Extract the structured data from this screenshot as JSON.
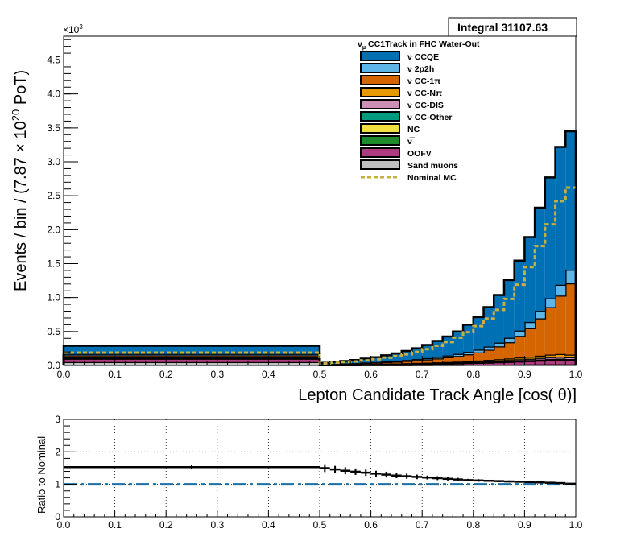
{
  "chart_data": [
    {
      "type": "stacked-histogram",
      "integral_label": "Integral 31107.63",
      "ylabel": "Events / bin / (7.87  × 10",
      "ylabel_exp": "20",
      "ylabel_tail": " PoT)",
      "xlabel": "Lepton Candidate Track Angle [cos(   θ)]",
      "y_multiplier": "×10",
      "y_multiplier_exp": "3",
      "xlim": [
        0.0,
        1.0
      ],
      "ylim": [
        0.0,
        4.85
      ],
      "yunit_scale": 1000,
      "x_ticks": [
        "0.0",
        "0.1",
        "0.2",
        "0.3",
        "0.4",
        "0.5",
        "0.6",
        "0.7",
        "0.8",
        "0.9",
        "1.0"
      ],
      "y_ticks": [
        "0.0",
        "0.5",
        "1.0",
        "1.5",
        "2.0",
        "2.5",
        "3.0",
        "3.5",
        "4.0",
        "4.5"
      ],
      "legend_header": "ν",
      "legend_header_sub": "μ",
      "legend_header_tail": " CC1Track in FHC Water-Out",
      "legend": [
        {
          "label": "ν CCQE",
          "color": "#0070b5"
        },
        {
          "label": "ν 2p2h",
          "color": "#5db5e8"
        },
        {
          "label": "ν CC-1π",
          "color": "#d46500"
        },
        {
          "label": "ν CC-Nπ",
          "color": "#e69a00"
        },
        {
          "label": "ν CC-DIS",
          "color": "#cc8fb5"
        },
        {
          "label": "ν CC-Other",
          "color": "#009a80"
        },
        {
          "label": "NC",
          "color": "#f0e040"
        },
        {
          "label": "ν̅",
          "color": "#1f8a2a"
        },
        {
          "label": "OOFV",
          "color": "#b03a80"
        },
        {
          "label": "Sand muons",
          "color": "#c0c0c0"
        },
        {
          "label": "Nominal MC",
          "color": "#c8b040",
          "style": "dashed"
        }
      ],
      "bin_edges": [
        0.0,
        0.5,
        0.52,
        0.54,
        0.56,
        0.58,
        0.6,
        0.62,
        0.64,
        0.66,
        0.68,
        0.7,
        0.72,
        0.74,
        0.76,
        0.78,
        0.8,
        0.82,
        0.84,
        0.86,
        0.88,
        0.9,
        0.92,
        0.94,
        0.96,
        0.98,
        1.0
      ],
      "series": [
        {
          "name": "Sand muons",
          "color": "#c0c0c0",
          "values": [
            0.05,
            0.003,
            0.003,
            0.003,
            0.003,
            0.004,
            0.004,
            0.005,
            0.005,
            0.005,
            0.006,
            0.006,
            0.007,
            0.007,
            0.008,
            0.009,
            0.01,
            0.011,
            0.012,
            0.013,
            0.014,
            0.015,
            0.016,
            0.017,
            0.017,
            0.016
          ]
        },
        {
          "name": "OOFV",
          "color": "#b03a80",
          "values": [
            0.05,
            0.004,
            0.005,
            0.006,
            0.007,
            0.008,
            0.009,
            0.01,
            0.011,
            0.013,
            0.014,
            0.016,
            0.018,
            0.02,
            0.022,
            0.025,
            0.028,
            0.031,
            0.035,
            0.039,
            0.044,
            0.049,
            0.055,
            0.061,
            0.065,
            0.06
          ]
        },
        {
          "name": "ν̅",
          "color": "#1f8a2a",
          "values": [
            0.008,
            0.001,
            0.001,
            0.001,
            0.001,
            0.002,
            0.002,
            0.002,
            0.002,
            0.003,
            0.003,
            0.003,
            0.004,
            0.004,
            0.004,
            0.005,
            0.005,
            0.006,
            0.006,
            0.007,
            0.008,
            0.008,
            0.009,
            0.01,
            0.01,
            0.01
          ]
        },
        {
          "name": "NC",
          "color": "#f0e040",
          "values": [
            0.005,
            0.001,
            0.001,
            0.001,
            0.001,
            0.001,
            0.001,
            0.002,
            0.002,
            0.002,
            0.002,
            0.002,
            0.002,
            0.003,
            0.003,
            0.003,
            0.003,
            0.004,
            0.004,
            0.004,
            0.005,
            0.005,
            0.005,
            0.006,
            0.006,
            0.006
          ]
        },
        {
          "name": "ν CC-Other",
          "color": "#009a80",
          "values": [
            0.002,
            0.0,
            0.0,
            0.0,
            0.0,
            0.001,
            0.001,
            0.001,
            0.001,
            0.001,
            0.001,
            0.001,
            0.001,
            0.001,
            0.001,
            0.002,
            0.002,
            0.002,
            0.002,
            0.002,
            0.003,
            0.003,
            0.003,
            0.003,
            0.003,
            0.003
          ]
        },
        {
          "name": "ν CC-DIS",
          "color": "#cc8fb5",
          "values": [
            0.01,
            0.001,
            0.001,
            0.002,
            0.002,
            0.002,
            0.003,
            0.003,
            0.004,
            0.004,
            0.005,
            0.006,
            0.006,
            0.007,
            0.008,
            0.009,
            0.011,
            0.012,
            0.014,
            0.016,
            0.018,
            0.02,
            0.023,
            0.026,
            0.028,
            0.027
          ]
        },
        {
          "name": "ν CC-Nπ",
          "color": "#e69a00",
          "values": [
            0.005,
            0.001,
            0.002,
            0.002,
            0.002,
            0.003,
            0.003,
            0.004,
            0.004,
            0.005,
            0.006,
            0.007,
            0.008,
            0.009,
            0.01,
            0.012,
            0.014,
            0.016,
            0.019,
            0.022,
            0.025,
            0.029,
            0.033,
            0.037,
            0.04,
            0.038
          ]
        },
        {
          "name": "ν CC-1π",
          "color": "#d46500",
          "values": [
            0.02,
            0.005,
            0.007,
            0.009,
            0.012,
            0.015,
            0.018,
            0.022,
            0.027,
            0.033,
            0.04,
            0.048,
            0.058,
            0.07,
            0.085,
            0.1,
            0.12,
            0.15,
            0.19,
            0.24,
            0.32,
            0.42,
            0.55,
            0.7,
            0.86,
            1.05
          ]
        },
        {
          "name": "ν 2p2h",
          "color": "#5db5e8",
          "values": [
            0.02,
            0.003,
            0.004,
            0.005,
            0.006,
            0.007,
            0.008,
            0.01,
            0.012,
            0.014,
            0.016,
            0.019,
            0.022,
            0.026,
            0.03,
            0.035,
            0.04,
            0.047,
            0.055,
            0.065,
            0.077,
            0.092,
            0.11,
            0.13,
            0.16,
            0.2
          ]
        },
        {
          "name": "ν CCQE",
          "color": "#0070b5",
          "values": [
            0.12,
            0.02,
            0.028,
            0.036,
            0.046,
            0.058,
            0.072,
            0.09,
            0.11,
            0.133,
            0.16,
            0.195,
            0.235,
            0.28,
            0.33,
            0.4,
            0.48,
            0.58,
            0.7,
            0.85,
            1.03,
            1.25,
            1.52,
            1.78,
            2.03,
            2.04
          ]
        }
      ],
      "nominal_mc": [
        0.19,
        0.03,
        0.04,
        0.05,
        0.06,
        0.075,
        0.092,
        0.115,
        0.14,
        0.165,
        0.2,
        0.24,
        0.29,
        0.345,
        0.41,
        0.49,
        0.58,
        0.69,
        0.82,
        0.98,
        1.19,
        1.45,
        1.76,
        2.08,
        2.42,
        2.62
      ]
    },
    {
      "type": "ratio",
      "ylabel": "Ratio to Nominal",
      "xlim": [
        0.0,
        1.0
      ],
      "ylim": [
        0.0,
        3.0
      ],
      "x_ticks": [
        "0.0",
        "0.1",
        "0.2",
        "0.3",
        "0.4",
        "0.5",
        "0.6",
        "0.7",
        "0.8",
        "0.9",
        "1.0"
      ],
      "y_ticks": [
        "0",
        "1",
        "2",
        "3"
      ],
      "grid": true,
      "reference_line": 1.0,
      "bin_edges": [
        0.0,
        0.5,
        0.52,
        0.54,
        0.56,
        0.58,
        0.6,
        0.62,
        0.64,
        0.66,
        0.68,
        0.7,
        0.72,
        0.74,
        0.76,
        0.78,
        0.8,
        0.82,
        0.84,
        0.86,
        0.88,
        0.9,
        0.92,
        0.94,
        0.96,
        0.98,
        1.0
      ],
      "values": [
        1.53,
        1.5,
        1.46,
        1.42,
        1.39,
        1.36,
        1.33,
        1.3,
        1.27,
        1.25,
        1.23,
        1.21,
        1.19,
        1.17,
        1.15,
        1.13,
        1.12,
        1.11,
        1.1,
        1.09,
        1.08,
        1.07,
        1.06,
        1.05,
        1.04,
        1.02
      ],
      "errors": [
        0.07,
        0.12,
        0.11,
        0.11,
        0.1,
        0.1,
        0.09,
        0.09,
        0.08,
        0.08,
        0.07,
        0.06,
        0.06,
        0.05,
        0.05,
        0.04,
        0.04,
        0.03,
        0.03,
        0.03,
        0.02,
        0.02,
        0.02,
        0.01,
        0.01,
        0.01
      ]
    }
  ]
}
